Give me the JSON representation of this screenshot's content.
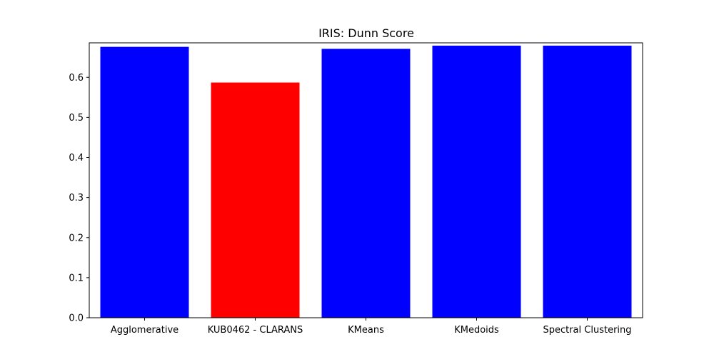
{
  "chart_data": {
    "type": "bar",
    "title": "IRIS: Dunn Score",
    "xlabel": "",
    "ylabel": "",
    "categories": [
      "Agglomerative",
      "KUB0462 - CLARANS",
      "KMeans",
      "KMedoids",
      "Spectral Clustering"
    ],
    "values": [
      0.676,
      0.587,
      0.671,
      0.679,
      0.679
    ],
    "colors": [
      "#0000ff",
      "#ff0000",
      "#0000ff",
      "#0000ff",
      "#0000ff"
    ],
    "ylim": [
      0,
      0.686
    ],
    "yticks": [
      0.0,
      0.1,
      0.2,
      0.3,
      0.4,
      0.5,
      0.6
    ],
    "ytick_labels": [
      "0.0",
      "0.1",
      "0.2",
      "0.3",
      "0.4",
      "0.5",
      "0.6"
    ],
    "grid": false,
    "legend": "none"
  }
}
